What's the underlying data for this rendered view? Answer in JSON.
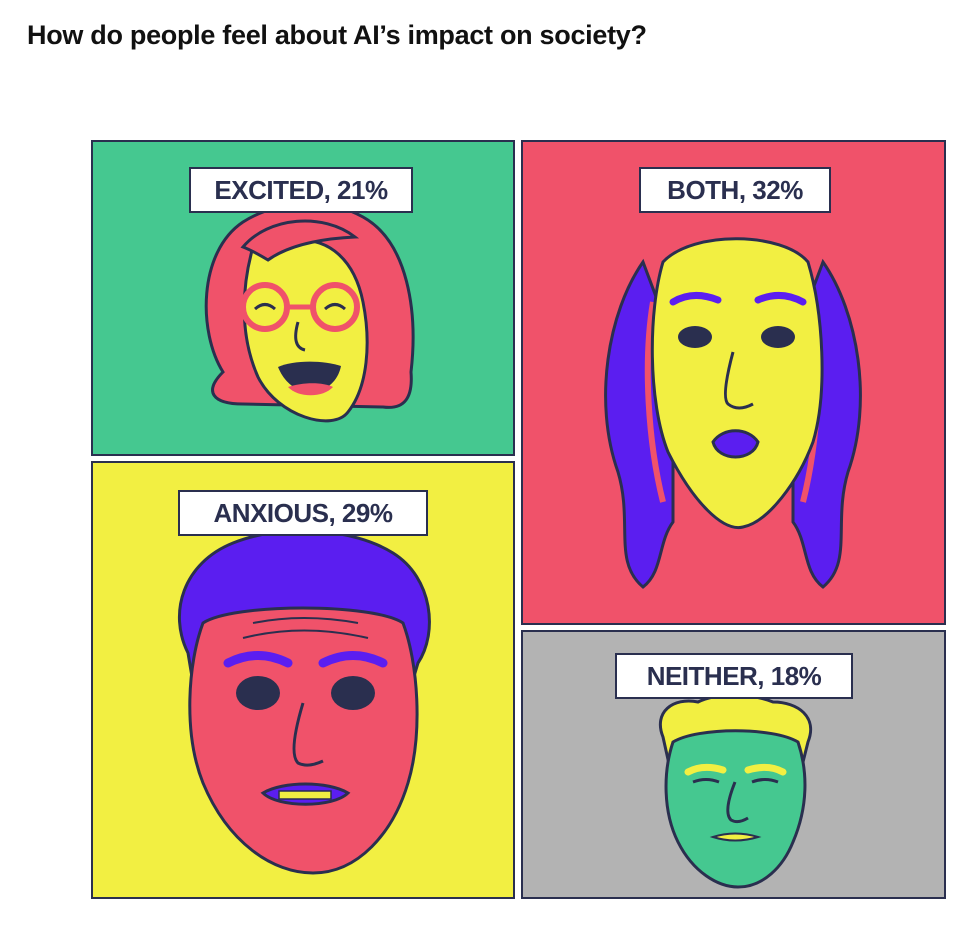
{
  "title": "How do people feel about AI’s impact on society?",
  "colors": {
    "excited_bg": "#45c890",
    "both_bg": "#f0526a",
    "anxious_bg": "#f2ef42",
    "neither_bg": "#b3b3b3",
    "outline": "#2a2f4f",
    "hair_purple": "#5b1ef0"
  },
  "icons": [
    "excited-face-icon",
    "both-face-icon",
    "anxious-face-icon",
    "neither-face-icon"
  ],
  "chart_data": {
    "type": "treemap",
    "title": "How do people feel about AI’s impact on society?",
    "categories": [
      "EXCITED",
      "BOTH",
      "ANXIOUS",
      "NEITHER"
    ],
    "values": [
      21,
      32,
      29,
      18
    ],
    "unit": "%",
    "labels": [
      "EXCITED, 21%",
      "BOTH, 32%",
      "ANXIOUS, 29%",
      "NEITHER, 18%"
    ]
  }
}
